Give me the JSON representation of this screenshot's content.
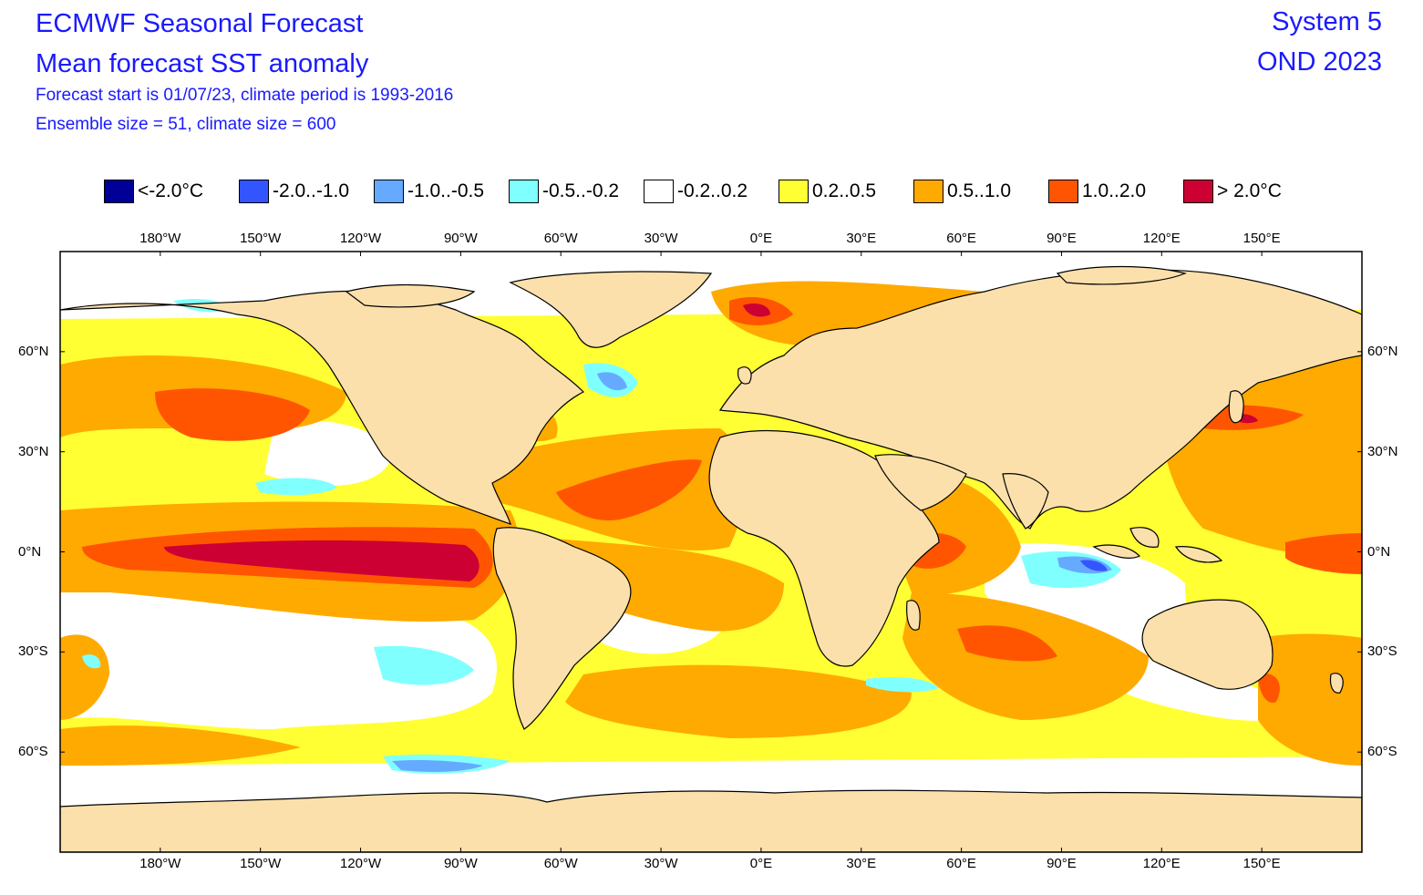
{
  "header": {
    "title": "ECMWF Seasonal Forecast",
    "subtitle": "Mean forecast SST anomaly",
    "line3": "Forecast start is 01/07/23, climate period is 1993-2016",
    "line4": "Ensemble size = 51, climate size = 600",
    "system": "System 5",
    "period": "OND 2023"
  },
  "legend": [
    {
      "label": "<-2.0°C",
      "color": "#000099"
    },
    {
      "label": "-2.0..-1.0",
      "color": "#3355ff"
    },
    {
      "label": "-1.0..-0.5",
      "color": "#66aaff"
    },
    {
      "label": "-0.5..-0.2",
      "color": "#80ffff"
    },
    {
      "label": "-0.2..0.2",
      "color": "#ffffff"
    },
    {
      "label": "0.2..0.5",
      "color": "#ffff33"
    },
    {
      "label": "0.5..1.0",
      "color": "#ffaa00"
    },
    {
      "label": "1.0..2.0",
      "color": "#ff5500"
    },
    {
      "label": "> 2.0°C",
      "color": "#cc0033"
    }
  ],
  "map": {
    "land_color": "#fce0ac",
    "lon_labels": [
      "180°W",
      "150°W",
      "120°W",
      "90°W",
      "60°W",
      "30°W",
      "0°E",
      "30°E",
      "60°E",
      "90°E",
      "120°E",
      "150°E"
    ],
    "lon_values": [
      -180,
      -150,
      -120,
      -90,
      -60,
      -30,
      0,
      30,
      60,
      90,
      120,
      150
    ],
    "lat_labels": [
      "60°N",
      "30°N",
      "0°N",
      "30°S",
      "60°S"
    ],
    "lat_values": [
      60,
      30,
      0,
      -30,
      -60
    ]
  }
}
